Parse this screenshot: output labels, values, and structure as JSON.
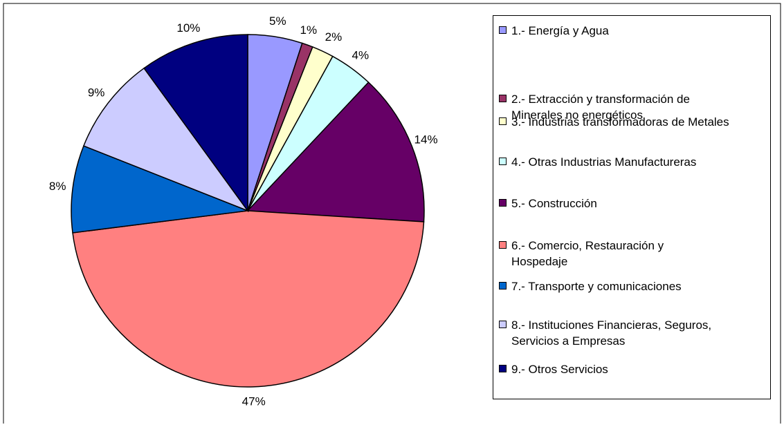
{
  "chart_data": {
    "type": "pie",
    "categories": [
      "1.- Energía y Agua",
      "2.- Extracción y transformación de Minerales no energéticos",
      "3.- Industrias transformadoras de Metales",
      "4.- Otras Industrias Manufactureras",
      "5.- Construcción",
      "6.- Comercio, Restauración y Hospedaje",
      "7.- Transporte y comunicaciones",
      "8.- Instituciones Financieras, Seguros, Servicios a Empresas",
      "9.- Otros Servicios"
    ],
    "values": [
      5,
      1,
      2,
      4,
      14,
      47,
      8,
      9,
      10
    ],
    "value_labels": [
      "5%",
      "1%",
      "2%",
      "4%",
      "14%",
      "47%",
      "8%",
      "9%",
      "10%"
    ],
    "colors": [
      "#9999ff",
      "#993366",
      "#ffffcc",
      "#ccffff",
      "#660066",
      "#ff8080",
      "#0066cc",
      "#ccccff",
      "#000080"
    ],
    "legend": "right"
  }
}
